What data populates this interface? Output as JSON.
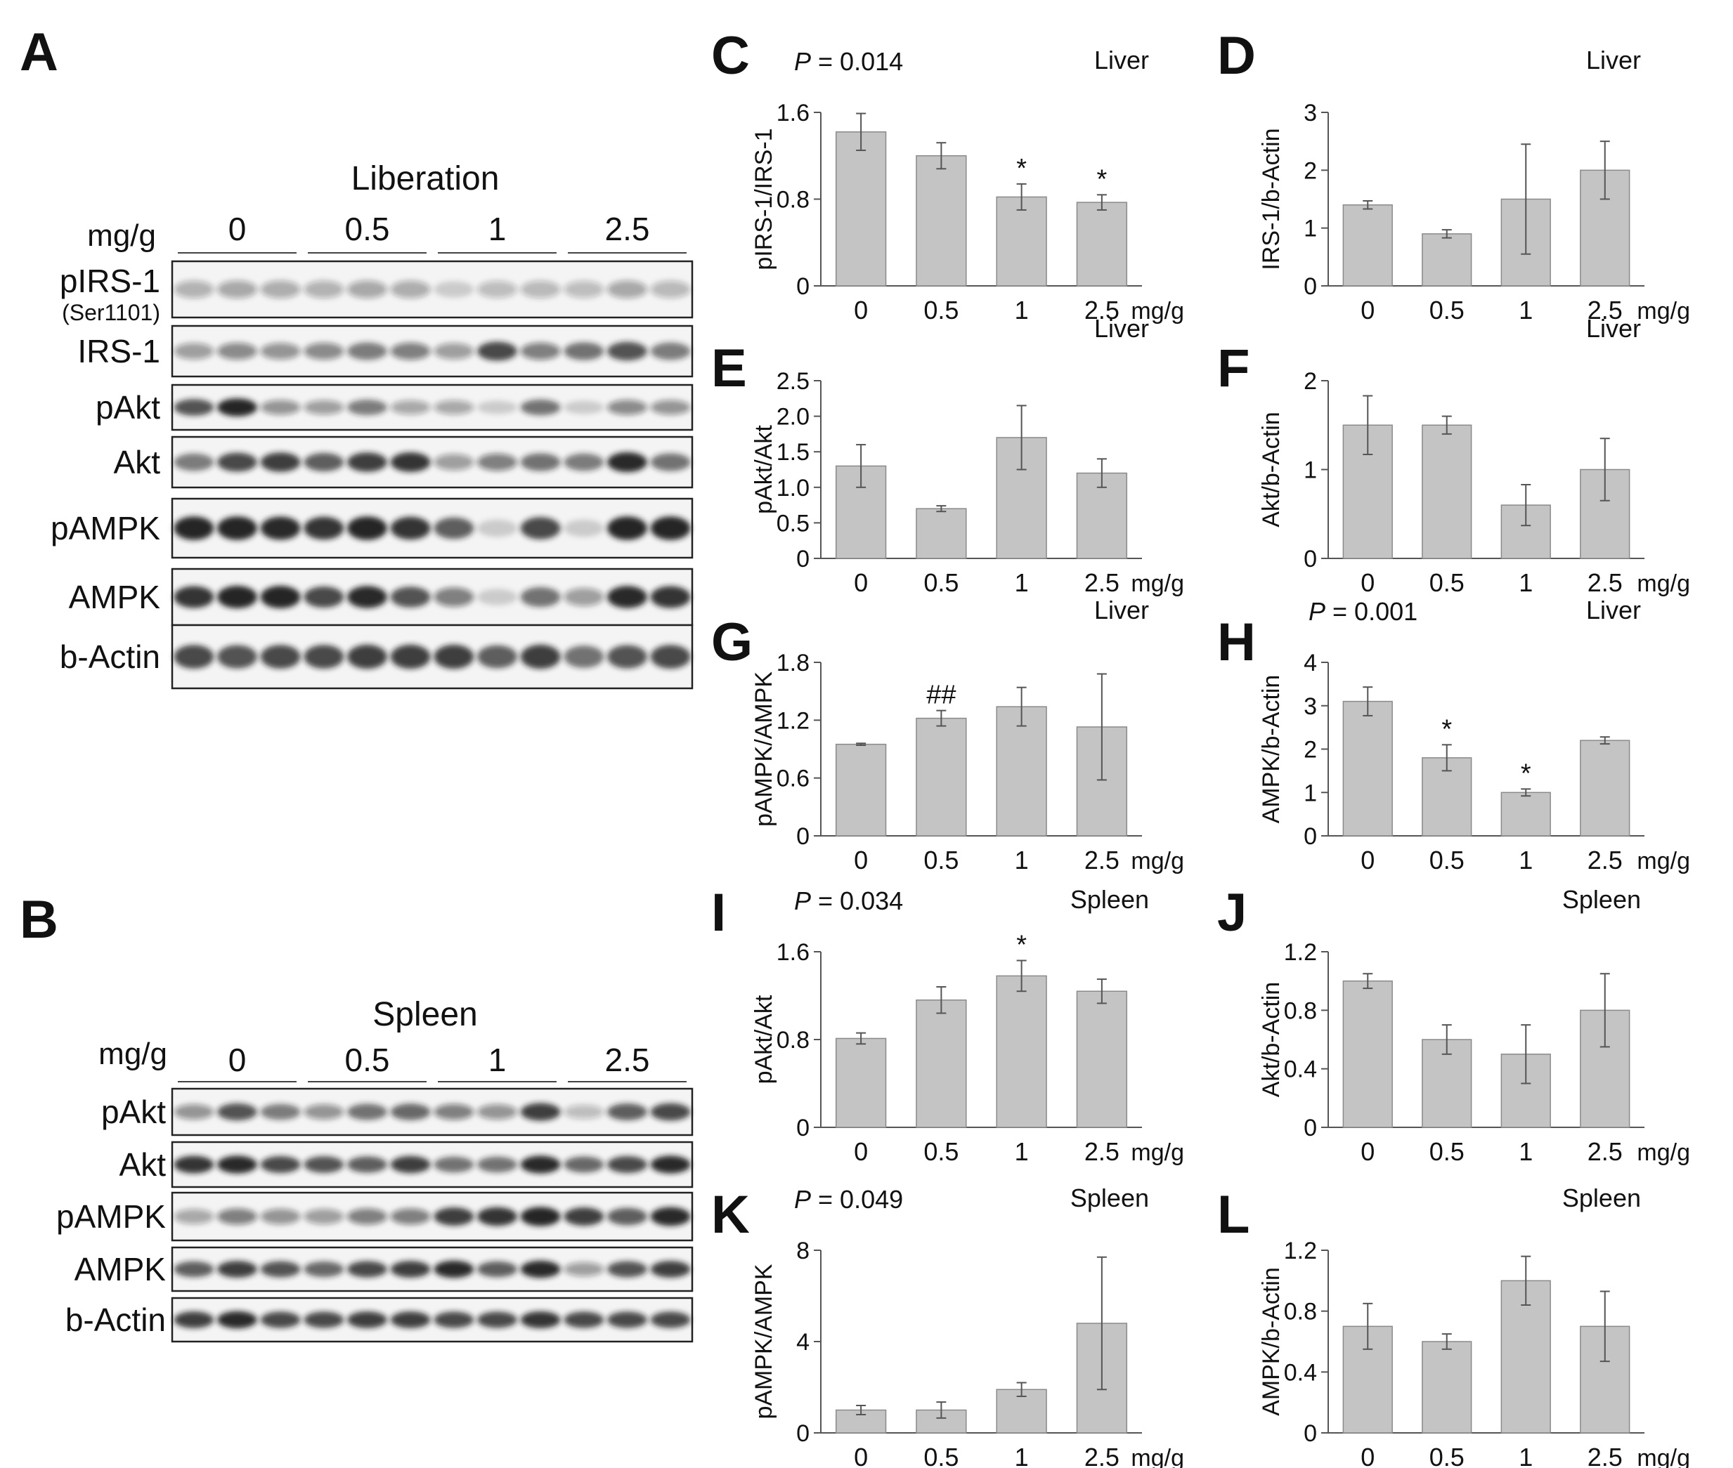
{
  "panel_letters": [
    "A",
    "B",
    "C",
    "D",
    "E",
    "F",
    "G",
    "H",
    "I",
    "J",
    "K",
    "L"
  ],
  "blots": [
    {
      "letter": "A",
      "title": "Liberation",
      "unit": "mg/g",
      "doses": [
        "0",
        "0.5",
        "1",
        "2.5"
      ],
      "lanes": [
        {
          "label": "pIRS-1",
          "sublabel": "(Ser1101)",
          "intensity": [
            0.25,
            0.3,
            0.28,
            0.25,
            0.3,
            0.28,
            0.1,
            0.2,
            0.22,
            0.2,
            0.3,
            0.22
          ]
        },
        {
          "label": "IRS-1",
          "intensity": [
            0.35,
            0.45,
            0.4,
            0.45,
            0.55,
            0.5,
            0.35,
            0.8,
            0.5,
            0.6,
            0.75,
            0.55
          ]
        },
        {
          "label": "pAkt",
          "intensity": [
            0.75,
            1.0,
            0.4,
            0.35,
            0.55,
            0.3,
            0.3,
            0.1,
            0.6,
            0.1,
            0.45,
            0.4
          ]
        },
        {
          "label": "Akt",
          "intensity": [
            0.55,
            0.8,
            0.85,
            0.7,
            0.85,
            0.9,
            0.35,
            0.5,
            0.6,
            0.55,
            0.95,
            0.6
          ]
        },
        {
          "label": "pAMPK",
          "intensity": [
            1.0,
            1.0,
            0.95,
            0.9,
            1.0,
            0.9,
            0.7,
            0.1,
            0.8,
            0.1,
            1.0,
            1.0
          ]
        },
        {
          "label": "AMPK",
          "intensity": [
            0.9,
            1.0,
            1.0,
            0.8,
            0.95,
            0.75,
            0.5,
            0.1,
            0.6,
            0.35,
            0.95,
            0.9
          ]
        },
        {
          "label": "b-Actin",
          "intensity": [
            0.8,
            0.75,
            0.8,
            0.8,
            0.85,
            0.85,
            0.85,
            0.7,
            0.85,
            0.6,
            0.75,
            0.8
          ]
        }
      ]
    },
    {
      "letter": "B",
      "title": "Spleen",
      "unit": "mg/g",
      "doses": [
        "0",
        "0.5",
        "1",
        "2.5"
      ],
      "lanes": [
        {
          "label": "pAkt",
          "intensity": [
            0.4,
            0.75,
            0.55,
            0.4,
            0.6,
            0.65,
            0.5,
            0.4,
            0.85,
            0.2,
            0.7,
            0.8
          ]
        },
        {
          "label": "Akt",
          "intensity": [
            0.9,
            0.95,
            0.8,
            0.75,
            0.7,
            0.85,
            0.6,
            0.6,
            0.95,
            0.65,
            0.8,
            0.95
          ]
        },
        {
          "label": "pAMPK",
          "intensity": [
            0.3,
            0.5,
            0.4,
            0.35,
            0.5,
            0.5,
            0.85,
            0.9,
            1.0,
            0.85,
            0.7,
            0.95
          ]
        },
        {
          "label": "AMPK",
          "intensity": [
            0.7,
            0.85,
            0.75,
            0.65,
            0.8,
            0.85,
            0.95,
            0.7,
            0.95,
            0.35,
            0.75,
            0.85
          ]
        },
        {
          "label": "b-Actin",
          "intensity": [
            0.85,
            0.95,
            0.8,
            0.8,
            0.85,
            0.85,
            0.8,
            0.8,
            0.9,
            0.8,
            0.8,
            0.8
          ]
        }
      ]
    }
  ],
  "chart_data": [
    {
      "letter": "C",
      "type": "bar",
      "categories": [
        "0",
        "0.5",
        "1",
        "2.5"
      ],
      "values": [
        1.42,
        1.2,
        0.82,
        0.77
      ],
      "errors": [
        0.17,
        0.12,
        0.12,
        0.07
      ],
      "marks": [
        "",
        "",
        "*",
        "*"
      ],
      "ylabel": "pIRS-1/IRS-1",
      "xunit": "mg/g",
      "tissue": "Liver",
      "pvalue": "= 0.014",
      "ylim": [
        0,
        1.6
      ],
      "yticks": [
        "0",
        "0.8",
        "1.6"
      ]
    },
    {
      "letter": "D",
      "type": "bar",
      "categories": [
        "0",
        "0.5",
        "1",
        "2.5"
      ],
      "values": [
        1.4,
        0.9,
        1.5,
        2.0
      ],
      "errors": [
        0.07,
        0.07,
        0.95,
        0.5
      ],
      "marks": [
        "",
        "",
        "",
        ""
      ],
      "ylabel": "IRS-1/b-Actin",
      "xunit": "mg/g",
      "tissue": "Liver",
      "pvalue": "",
      "ylim": [
        0,
        3
      ],
      "yticks": [
        "0",
        "1",
        "2",
        "3"
      ]
    },
    {
      "letter": "E",
      "type": "bar",
      "categories": [
        "0",
        "0.5",
        "1",
        "2.5"
      ],
      "values": [
        1.3,
        0.7,
        1.7,
        1.2
      ],
      "errors": [
        0.3,
        0.04,
        0.45,
        0.2
      ],
      "marks": [
        "",
        "",
        "",
        ""
      ],
      "ylabel": "pAkt/Akt",
      "xunit": "mg/g",
      "tissue": "Liver",
      "pvalue": "",
      "ylim": [
        0,
        2.5
      ],
      "yticks": [
        "0",
        "0.5",
        "1.0",
        "1.5",
        "2.0",
        "2.5"
      ]
    },
    {
      "letter": "F",
      "type": "bar",
      "categories": [
        "0",
        "0.5",
        "1",
        "2.5"
      ],
      "values": [
        1.5,
        1.5,
        0.6,
        1.0
      ],
      "errors": [
        0.33,
        0.1,
        0.23,
        0.35
      ],
      "marks": [
        "",
        "",
        "",
        ""
      ],
      "ylabel": "Akt/b-Actin",
      "xunit": "mg/g",
      "tissue": "Liver",
      "pvalue": "",
      "ylim": [
        0,
        2
      ],
      "yticks": [
        "0",
        "1",
        "2"
      ]
    },
    {
      "letter": "G",
      "type": "bar",
      "categories": [
        "0",
        "0.5",
        "1",
        "2.5"
      ],
      "values": [
        0.95,
        1.22,
        1.34,
        1.13
      ],
      "errors": [
        0.01,
        0.08,
        0.2,
        0.55
      ],
      "marks": [
        "",
        "##",
        "",
        ""
      ],
      "ylabel": "pAMPK/AMPK",
      "xunit": "mg/g",
      "tissue": "Liver",
      "pvalue": "",
      "ylim": [
        0,
        1.8
      ],
      "yticks": [
        "0",
        "0.6",
        "1.2",
        "1.8"
      ]
    },
    {
      "letter": "H",
      "type": "bar",
      "categories": [
        "0",
        "0.5",
        "1",
        "2.5"
      ],
      "values": [
        3.1,
        1.8,
        1.0,
        2.2
      ],
      "errors": [
        0.33,
        0.3,
        0.08,
        0.08
      ],
      "marks": [
        "",
        "*",
        "*",
        ""
      ],
      "ylabel": "AMPK/b-Actin",
      "xunit": "mg/g",
      "tissue": "Liver",
      "pvalue": "= 0.001",
      "ylim": [
        0,
        4
      ],
      "yticks": [
        "0",
        "1",
        "2",
        "3",
        "4"
      ]
    },
    {
      "letter": "I",
      "type": "bar",
      "categories": [
        "0",
        "0.5",
        "1",
        "2.5"
      ],
      "values": [
        0.81,
        1.16,
        1.38,
        1.24
      ],
      "errors": [
        0.05,
        0.12,
        0.14,
        0.11
      ],
      "marks": [
        "",
        "",
        "*",
        ""
      ],
      "ylabel": "pAkt/Akt",
      "xunit": "mg/g",
      "tissue": "Spleen",
      "pvalue": "= 0.034",
      "ylim": [
        0,
        1.6
      ],
      "yticks": [
        "0",
        "0.8",
        "1.6"
      ]
    },
    {
      "letter": "J",
      "type": "bar",
      "categories": [
        "0",
        "0.5",
        "1",
        "2.5"
      ],
      "values": [
        1.0,
        0.6,
        0.5,
        0.8
      ],
      "errors": [
        0.05,
        0.1,
        0.2,
        0.25
      ],
      "marks": [
        "",
        "",
        "",
        ""
      ],
      "ylabel": "Akt/b-Actin",
      "xunit": "mg/g",
      "tissue": "Spleen",
      "pvalue": "",
      "ylim": [
        0,
        1.2
      ],
      "yticks": [
        "0",
        "0.4",
        "0.8",
        "1.2"
      ]
    },
    {
      "letter": "K",
      "type": "bar",
      "categories": [
        "0",
        "0.5",
        "1",
        "2.5"
      ],
      "values": [
        1.0,
        1.0,
        1.9,
        4.8
      ],
      "errors": [
        0.2,
        0.35,
        0.3,
        2.9
      ],
      "marks": [
        "",
        "",
        "",
        ""
      ],
      "ylabel": "pAMPK/AMPK",
      "xunit": "mg/g",
      "tissue": "Spleen",
      "pvalue": "= 0.049",
      "ylim": [
        0,
        8
      ],
      "yticks": [
        "0",
        "4",
        "8"
      ]
    },
    {
      "letter": "L",
      "type": "bar",
      "categories": [
        "0",
        "0.5",
        "1",
        "2.5"
      ],
      "values": [
        0.7,
        0.6,
        1.0,
        0.7
      ],
      "errors": [
        0.15,
        0.05,
        0.16,
        0.23
      ],
      "marks": [
        "",
        "",
        "",
        ""
      ],
      "ylabel": "AMPK/b-Actin",
      "xunit": "mg/g",
      "tissue": "Spleen",
      "pvalue": "",
      "ylim": [
        0,
        1.2
      ],
      "yticks": [
        "0",
        "0.4",
        "0.8",
        "1.2"
      ]
    }
  ],
  "p_symbol": "P",
  "colors": {
    "bar_fill": "#c4c4c4",
    "bar_stroke": "#8a8a8a",
    "axis": "#555555",
    "band": "#1a1a1a",
    "blot_bg": "#f4f4f4"
  }
}
